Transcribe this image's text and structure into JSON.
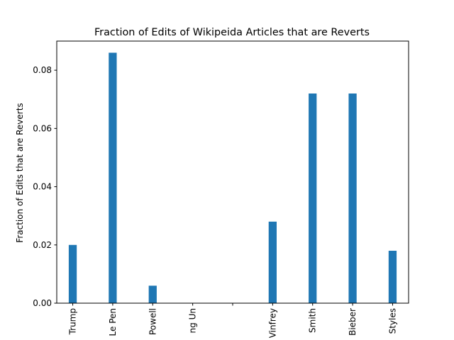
{
  "chart_data": {
    "type": "bar",
    "title": "Fraction of Edits of Wikipeida Articles that are Reverts",
    "xlabel": "",
    "ylabel": "Fraction of Edits that are Reverts",
    "categories": [
      "Trump",
      "Le Pen",
      "Powell",
      "ng Un",
      "",
      "Vinfrey",
      "Smith",
      "Bieber",
      "Styles"
    ],
    "values": [
      0.02,
      0.086,
      0.006,
      0.0,
      0.0,
      0.028,
      0.072,
      0.072,
      0.018
    ],
    "ylim": [
      0,
      0.09
    ],
    "yticks": [
      0.0,
      0.02,
      0.04,
      0.06,
      0.08
    ],
    "ytick_labels": [
      "0.00",
      "0.02",
      "0.04",
      "0.06",
      "0.08"
    ],
    "grid": false,
    "bar_color": "#1f77b4"
  }
}
